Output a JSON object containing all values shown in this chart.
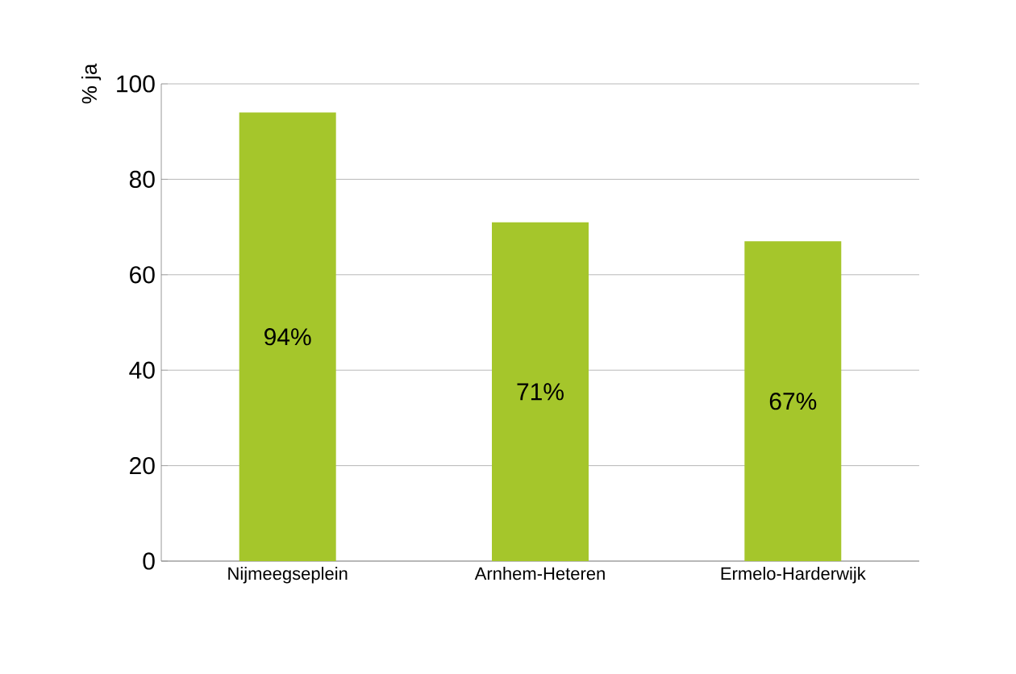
{
  "chart_data": {
    "type": "bar",
    "ylabel": "% ja",
    "categories": [
      "Nijmeegseplein",
      "Arnhem-Heteren",
      "Ermelo-Harderwijk"
    ],
    "values": [
      94,
      71,
      67
    ],
    "value_labels": [
      "94%",
      "71%",
      "67%"
    ],
    "color": "#a5c62b",
    "ylim": [
      0,
      100
    ],
    "yticks": [
      0,
      20,
      40,
      60,
      80,
      100
    ],
    "grid": "y"
  }
}
